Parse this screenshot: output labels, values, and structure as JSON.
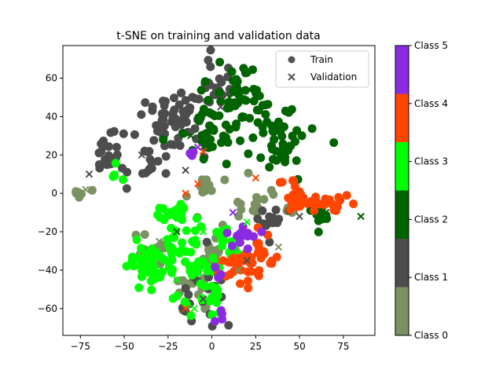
{
  "chart_data": {
    "type": "scatter",
    "title": "t-SNE on training and validation data",
    "xlabel": "",
    "ylabel": "",
    "xlim": [
      -85,
      93
    ],
    "ylim": [
      -74,
      77
    ],
    "xticks": [
      -75,
      -50,
      -25,
      0,
      25,
      50,
      75
    ],
    "yticks": [
      -60,
      -40,
      -20,
      0,
      20,
      40,
      60
    ],
    "xtick_labels": [
      "−75",
      "−50",
      "−25",
      "0",
      "25",
      "50",
      "75"
    ],
    "ytick_labels": [
      "−60",
      "−40",
      "−20",
      "0",
      "20",
      "40",
      "60"
    ],
    "grid": false,
    "legend": {
      "position": "top-right",
      "entries": [
        {
          "label": "Train",
          "marker": "circle"
        },
        {
          "label": "Validation",
          "marker": "x"
        }
      ]
    },
    "colorbar": {
      "labels": [
        "Class 0",
        "Class 1",
        "Class 2",
        "Class 3",
        "Class 4",
        "Class 5"
      ],
      "colors": [
        "#7a9162",
        "#4d4d4d",
        "#006400",
        "#00ff00",
        "#ff4500",
        "#8a2be2"
      ]
    },
    "classes": [
      {
        "label": "Class 0",
        "color": "#7a9162",
        "clusters": [
          {
            "cx": -76,
            "cy": 1,
            "sx": 2,
            "sy": 1.5,
            "n": 10
          },
          {
            "cx": -32,
            "cy": -32,
            "sx": 6,
            "sy": 6,
            "n": 15
          },
          {
            "cx": 2,
            "cy": -30,
            "sx": 5,
            "sy": 6,
            "n": 16
          },
          {
            "cx": -10,
            "cy": -48,
            "sx": 8,
            "sy": 8,
            "n": 20
          },
          {
            "cx": 25,
            "cy": -6,
            "sx": 8,
            "sy": 5,
            "n": 14
          },
          {
            "cx": -5,
            "cy": 3,
            "sx": 5,
            "sy": 3,
            "n": 12
          },
          {
            "cx": 45,
            "cy": -8,
            "sx": 3,
            "sy": 3,
            "n": 6
          }
        ],
        "x_marks": [
          [
            -72,
            2
          ],
          [
            -30,
            -25
          ],
          [
            15,
            -40
          ],
          [
            38,
            -28
          ]
        ]
      },
      {
        "label": "Class 1",
        "color": "#4d4d4d",
        "clusters": [
          {
            "cx": -60,
            "cy": 20,
            "sx": 5,
            "sy": 6,
            "n": 25
          },
          {
            "cx": -20,
            "cy": 38,
            "sx": 9,
            "sy": 8,
            "n": 60
          },
          {
            "cx": 2,
            "cy": 55,
            "sx": 5,
            "sy": 8,
            "n": 25
          },
          {
            "cx": -35,
            "cy": 20,
            "sx": 5,
            "sy": 5,
            "n": 15
          },
          {
            "cx": -5,
            "cy": -50,
            "sx": 8,
            "sy": 8,
            "n": 22
          },
          {
            "cx": 35,
            "cy": -15,
            "sx": 5,
            "sy": 5,
            "n": 15
          }
        ],
        "x_marks": [
          [
            -70,
            10
          ],
          [
            -40,
            20
          ],
          [
            -15,
            12
          ],
          [
            5,
            45
          ],
          [
            -5,
            -55
          ],
          [
            20,
            -35
          ],
          [
            50,
            -12
          ]
        ]
      },
      {
        "label": "Class 2",
        "color": "#006400",
        "clusters": [
          {
            "cx": 15,
            "cy": 45,
            "sx": 10,
            "sy": 7,
            "n": 50
          },
          {
            "cx": 38,
            "cy": 28,
            "sx": 10,
            "sy": 9,
            "n": 45
          },
          {
            "cx": -2,
            "cy": 28,
            "sx": 6,
            "sy": 7,
            "n": 22
          },
          {
            "cx": 15,
            "cy": 62,
            "sx": 6,
            "sy": 4,
            "n": 10
          },
          {
            "cx": 62,
            "cy": -12,
            "sx": 5,
            "sy": 2,
            "n": 10
          }
        ],
        "x_marks": [
          [
            35,
            30
          ],
          [
            10,
            50
          ],
          [
            45,
            25
          ],
          [
            -12,
            30
          ],
          [
            65,
            -10
          ],
          [
            85,
            -12
          ],
          [
            -20,
            -20
          ]
        ]
      },
      {
        "label": "Class 3",
        "color": "#00ff00",
        "clusters": [
          {
            "cx": -35,
            "cy": -38,
            "sx": 6,
            "sy": 6,
            "n": 55
          },
          {
            "cx": -12,
            "cy": -32,
            "sx": 8,
            "sy": 10,
            "n": 40
          },
          {
            "cx": -5,
            "cy": -55,
            "sx": 7,
            "sy": 5,
            "n": 20
          },
          {
            "cx": -22,
            "cy": -10,
            "sx": 6,
            "sy": 4,
            "n": 20
          },
          {
            "cx": 8,
            "cy": -28,
            "sx": 6,
            "sy": 8,
            "n": 15
          },
          {
            "cx": -55,
            "cy": 12,
            "sx": 2,
            "sy": 3,
            "n": 5
          }
        ],
        "x_marks": [
          [
            -32,
            -30
          ],
          [
            -20,
            -45
          ],
          [
            -5,
            -20
          ],
          [
            -40,
            -30
          ],
          [
            -10,
            -60
          ],
          [
            -55,
            10
          ],
          [
            20,
            -15
          ]
        ]
      },
      {
        "label": "Class 4",
        "color": "#ff4500",
        "clusters": [
          {
            "cx": 50,
            "cy": -2,
            "sx": 4,
            "sy": 2.5,
            "n": 18
          },
          {
            "cx": 70,
            "cy": -6,
            "sx": 8,
            "sy": 2.5,
            "n": 18
          },
          {
            "cx": 18,
            "cy": -38,
            "sx": 7,
            "sy": 5,
            "n": 30
          },
          {
            "cx": 30,
            "cy": -32,
            "sx": 4,
            "sy": 5,
            "n": 12
          },
          {
            "cx": 43,
            "cy": 4,
            "sx": 3,
            "sy": 2,
            "n": 5
          }
        ],
        "x_marks": [
          [
            -5,
            22
          ],
          [
            -15,
            -60
          ],
          [
            25,
            8
          ],
          [
            -8,
            5
          ],
          [
            -15,
            0
          ],
          [
            5,
            -35
          ]
        ]
      },
      {
        "label": "Class 5",
        "color": "#8a2be2",
        "clusters": [
          {
            "cx": 18,
            "cy": -20,
            "sx": 4,
            "sy": 4,
            "n": 12
          },
          {
            "cx": 5,
            "cy": -42,
            "sx": 2,
            "sy": 2,
            "n": 3
          },
          {
            "cx": -10,
            "cy": 20,
            "sx": 2,
            "sy": 2,
            "n": 3
          },
          {
            "cx": 5,
            "cy": -62,
            "sx": 3,
            "sy": 2,
            "n": 4
          }
        ],
        "x_marks": [
          [
            12,
            -10
          ],
          [
            -8,
            24
          ]
        ]
      }
    ]
  }
}
